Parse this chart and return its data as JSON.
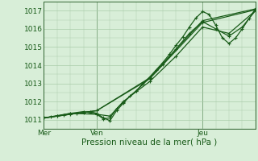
{
  "title": "Pression niveau de la mer( hPa )",
  "ylabel_ticks": [
    1011,
    1012,
    1013,
    1014,
    1015,
    1016,
    1017
  ],
  "ylim": [
    1010.5,
    1017.5
  ],
  "xlim": [
    0,
    96
  ],
  "x_ticks": [
    0,
    24,
    72
  ],
  "x_labels": [
    "Mer",
    "Ven",
    "Jeu"
  ],
  "bg_color": "#d8eed8",
  "grid_color": "#aaccaa",
  "line_color": "#1a5c1a",
  "series": [
    [
      0,
      1011.1,
      3,
      1011.15,
      6,
      1011.2,
      9,
      1011.25,
      12,
      1011.3,
      15,
      1011.35,
      18,
      1011.4,
      21,
      1011.45,
      24,
      1011.35,
      27,
      1011.1,
      30,
      1010.95,
      33,
      1011.5,
      36,
      1011.9,
      39,
      1012.3,
      42,
      1012.6,
      45,
      1013.0,
      48,
      1013.35,
      51,
      1013.75,
      54,
      1014.15,
      57,
      1014.6,
      60,
      1015.1,
      63,
      1015.55,
      66,
      1016.1,
      69,
      1016.6,
      72,
      1016.95,
      75,
      1016.8,
      78,
      1016.2,
      81,
      1015.5,
      84,
      1015.2,
      87,
      1015.5,
      90,
      1016.0,
      93,
      1016.55,
      96,
      1017.1
    ],
    [
      0,
      1011.1,
      6,
      1011.2,
      12,
      1011.35,
      18,
      1011.45,
      24,
      1011.3,
      27,
      1011.05,
      30,
      1011.1,
      33,
      1011.6,
      36,
      1011.95,
      42,
      1012.6,
      48,
      1013.3,
      54,
      1014.05,
      60,
      1014.9,
      66,
      1015.75,
      72,
      1016.4,
      78,
      1016.0,
      84,
      1015.6,
      90,
      1016.1,
      96,
      1017.0
    ],
    [
      0,
      1011.1,
      12,
      1011.35,
      24,
      1011.3,
      30,
      1011.2,
      36,
      1012.0,
      48,
      1013.1,
      60,
      1014.5,
      72,
      1016.1,
      84,
      1015.75,
      96,
      1017.0
    ],
    [
      0,
      1011.1,
      24,
      1011.5,
      48,
      1013.3,
      72,
      1016.45,
      96,
      1017.1
    ],
    [
      0,
      1011.1,
      24,
      1011.5,
      48,
      1013.25,
      72,
      1016.35,
      96,
      1017.05
    ]
  ],
  "vline_x": [
    0,
    24,
    72
  ],
  "minor_ticks_x": 6
}
